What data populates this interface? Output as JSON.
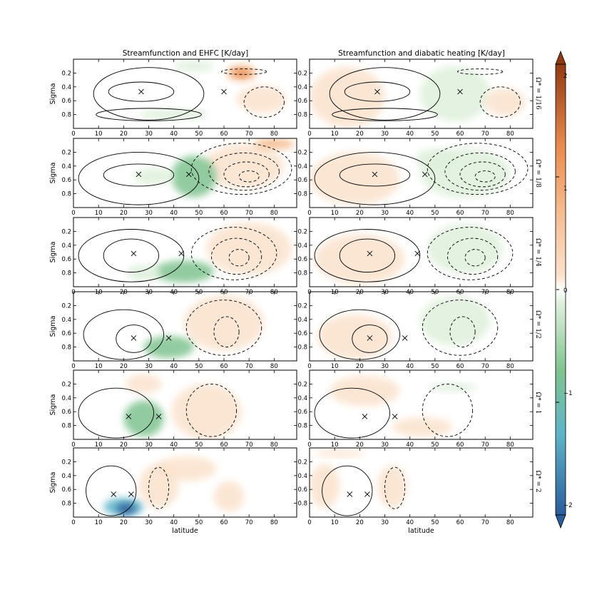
{
  "chart_data": {
    "type": "contour",
    "column_titles": [
      "Streamfunction and EHFC [K/day]",
      "Streamfunction and diabatic heating [K/day]"
    ],
    "xlabel": "latitude",
    "ylabel": "Sigma",
    "xlim": [
      0,
      89
    ],
    "ylim": [
      1.0,
      0.0
    ],
    "x_ticks": [
      0,
      10,
      20,
      30,
      40,
      50,
      60,
      70,
      80
    ],
    "y_ticks": [
      0.2,
      0.4,
      0.6,
      0.8
    ],
    "x_tick_labels": [
      "0",
      "10",
      "20",
      "30",
      "40",
      "50",
      "60",
      "70",
      "80"
    ],
    "y_tick_labels": [
      "0.2",
      "0.4",
      "0.6",
      "0.8"
    ],
    "row_labels": [
      "Ω* = 1/16",
      "Ω* = 1/8",
      "Ω* = 1/4",
      "Ω* = 1/2",
      "Ω* = 1",
      "Ω* = 2"
    ],
    "colorbar": {
      "range": [
        -2,
        2
      ],
      "ticks": [
        -2,
        -1,
        0,
        1,
        2
      ],
      "tick_labels": [
        "−2",
        "−1",
        "0",
        "1",
        "2"
      ],
      "extend": "both",
      "colors": {
        "neg_max": "#2b5c9b",
        "neg_mid": "#5fb4c8",
        "neg_low": "#7fc38f",
        "neg_min": "#dff0dc",
        "zero": "#ffffff",
        "pos_min": "#fbe2cc",
        "pos_low": "#f5ba8c",
        "pos_mid": "#e98a4e",
        "pos_max": "#8e3b14"
      }
    },
    "rows": [
      {
        "cells": [
          {
            "lat": 27,
            "sigma": 0.47
          },
          {
            "lat": 60,
            "sigma": 0.47
          }
        ],
        "cell_rings": [
          {
            "cx": 30,
            "cy": 0.5,
            "rx": 22,
            "ry": 0.38
          },
          {
            "cx": 27,
            "cy": 0.47,
            "rx": 13,
            "ry": 0.14
          }
        ],
        "cell_lower": {
          "cx": 30,
          "cy": 0.8,
          "rx": 21,
          "ry": 0.09
        },
        "dashed": [
          {
            "cx": 76,
            "cy": 0.62,
            "rx": 8,
            "ry": 0.22
          },
          {
            "cx": 68,
            "cy": 0.18,
            "rx": 9,
            "ry": 0.04
          }
        ],
        "ehfc": [
          {
            "cx": 67,
            "cy": 0.2,
            "rx": 6,
            "ry": 0.12,
            "v": 1.1
          },
          {
            "cx": 67,
            "cy": 0.2,
            "rx": 3,
            "ry": 0.06,
            "v": 1.6
          },
          {
            "cx": 48,
            "cy": 0.1,
            "rx": 8,
            "ry": 0.08,
            "v": -0.35
          },
          {
            "cx": 75,
            "cy": 0.58,
            "rx": 10,
            "ry": 0.2,
            "v": 0.3
          },
          {
            "cx": 40,
            "cy": 0.8,
            "rx": 14,
            "ry": 0.08,
            "v": -0.25
          }
        ],
        "diab": [
          {
            "cx": 15,
            "cy": 0.55,
            "rx": 15,
            "ry": 0.44,
            "v": 0.45
          },
          {
            "cx": 58,
            "cy": 0.5,
            "rx": 14,
            "ry": 0.4,
            "v": -0.2
          },
          {
            "cx": 78,
            "cy": 0.62,
            "rx": 8,
            "ry": 0.2,
            "v": 0.3
          }
        ]
      },
      {
        "cells": [
          {
            "lat": 26,
            "sigma": 0.52
          },
          {
            "lat": 46,
            "sigma": 0.52
          }
        ],
        "cell_rings": [
          {
            "cx": 26,
            "cy": 0.58,
            "rx": 24,
            "ry": 0.38
          },
          {
            "cx": 26,
            "cy": 0.53,
            "rx": 14,
            "ry": 0.16
          }
        ],
        "dashed": [
          {
            "cx": 67,
            "cy": 0.44,
            "rx": 20,
            "ry": 0.37
          },
          {
            "cx": 68,
            "cy": 0.48,
            "rx": 14,
            "ry": 0.27
          },
          {
            "cx": 69,
            "cy": 0.52,
            "rx": 9,
            "ry": 0.18
          },
          {
            "cx": 70,
            "cy": 0.55,
            "rx": 4,
            "ry": 0.08
          }
        ],
        "ehfc": [
          {
            "cx": 68,
            "cy": 0.4,
            "rx": 16,
            "ry": 0.32,
            "v": 0.45
          },
          {
            "cx": 80,
            "cy": 0.08,
            "rx": 8,
            "ry": 0.08,
            "v": 0.7
          },
          {
            "cx": 48,
            "cy": 0.55,
            "rx": 9,
            "ry": 0.3,
            "v": -0.45
          },
          {
            "cx": 32,
            "cy": 0.55,
            "rx": 8,
            "ry": 0.12,
            "v": -0.3
          }
        ],
        "diab": [
          {
            "cx": 18,
            "cy": 0.58,
            "rx": 18,
            "ry": 0.38,
            "v": 0.5
          },
          {
            "cx": 62,
            "cy": 0.5,
            "rx": 18,
            "ry": 0.36,
            "v": -0.3
          },
          {
            "cx": 50,
            "cy": 0.3,
            "rx": 8,
            "ry": 0.15,
            "v": -0.2
          }
        ]
      },
      {
        "cells": [
          {
            "lat": 24,
            "sigma": 0.52
          },
          {
            "lat": 43,
            "sigma": 0.52
          }
        ],
        "cell_rings": [
          {
            "cx": 23,
            "cy": 0.55,
            "rx": 21,
            "ry": 0.38
          },
          {
            "cx": 23,
            "cy": 0.55,
            "rx": 11,
            "ry": 0.24
          }
        ],
        "dashed": [
          {
            "cx": 64,
            "cy": 0.52,
            "rx": 17,
            "ry": 0.38
          },
          {
            "cx": 65,
            "cy": 0.56,
            "rx": 10,
            "ry": 0.26
          },
          {
            "cx": 66,
            "cy": 0.58,
            "rx": 4,
            "ry": 0.12
          }
        ],
        "ehfc": [
          {
            "cx": 70,
            "cy": 0.45,
            "rx": 17,
            "ry": 0.38,
            "v": 0.45
          },
          {
            "cx": 44,
            "cy": 0.78,
            "rx": 12,
            "ry": 0.16,
            "v": -0.55
          },
          {
            "cx": 28,
            "cy": 0.8,
            "rx": 7,
            "ry": 0.12,
            "v": -0.25
          }
        ],
        "diab": [
          {
            "cx": 20,
            "cy": 0.6,
            "rx": 18,
            "ry": 0.36,
            "v": 0.5
          },
          {
            "cx": 62,
            "cy": 0.45,
            "rx": 15,
            "ry": 0.36,
            "v": -0.3
          }
        ]
      },
      {
        "cells": [
          {
            "lat": 24,
            "sigma": 0.67
          },
          {
            "lat": 38,
            "sigma": 0.67
          }
        ],
        "cell_rings": [
          {
            "cx": 20,
            "cy": 0.62,
            "rx": 16,
            "ry": 0.36
          },
          {
            "cx": 24,
            "cy": 0.68,
            "rx": 7,
            "ry": 0.2
          }
        ],
        "dashed": [
          {
            "cx": 60,
            "cy": 0.52,
            "rx": 15,
            "ry": 0.4
          },
          {
            "cx": 61,
            "cy": 0.58,
            "rx": 5,
            "ry": 0.22
          }
        ],
        "ehfc": [
          {
            "cx": 60,
            "cy": 0.45,
            "rx": 16,
            "ry": 0.4,
            "v": 0.4
          },
          {
            "cx": 38,
            "cy": 0.8,
            "rx": 10,
            "ry": 0.16,
            "v": -0.5
          }
        ],
        "diab": [
          {
            "cx": 18,
            "cy": 0.65,
            "rx": 15,
            "ry": 0.32,
            "v": 0.45
          },
          {
            "cx": 58,
            "cy": 0.42,
            "rx": 14,
            "ry": 0.36,
            "v": -0.25
          }
        ]
      },
      {
        "cells": [
          {
            "lat": 22,
            "sigma": 0.67
          },
          {
            "lat": 34,
            "sigma": 0.67
          }
        ],
        "cell_rings": [
          {
            "cx": 17,
            "cy": 0.62,
            "rx": 15,
            "ry": 0.36
          }
        ],
        "dashed": [
          {
            "cx": 55,
            "cy": 0.58,
            "rx": 10,
            "ry": 0.38
          }
        ],
        "ehfc": [
          {
            "cx": 53,
            "cy": 0.6,
            "rx": 14,
            "ry": 0.4,
            "v": 0.35
          },
          {
            "cx": 28,
            "cy": 0.7,
            "rx": 8,
            "ry": 0.26,
            "v": -0.55
          },
          {
            "cx": 28,
            "cy": 0.2,
            "rx": 7,
            "ry": 0.14,
            "v": 0.3
          }
        ],
        "diab": [
          {
            "cx": 22,
            "cy": 0.3,
            "rx": 14,
            "ry": 0.22,
            "v": 0.35
          },
          {
            "cx": 45,
            "cy": 0.82,
            "rx": 12,
            "ry": 0.14,
            "v": 0.3
          },
          {
            "cx": 57,
            "cy": 0.25,
            "rx": 10,
            "ry": 0.06,
            "v": -0.2
          }
        ]
      },
      {
        "cells": [
          {
            "lat": 16,
            "sigma": 0.67
          },
          {
            "lat": 23,
            "sigma": 0.67
          }
        ],
        "cell_rings": [
          {
            "cx": 15,
            "cy": 0.62,
            "rx": 10,
            "ry": 0.36
          }
        ],
        "dashed": [
          {
            "cx": 34,
            "cy": 0.58,
            "rx": 4,
            "ry": 0.3
          }
        ],
        "ehfc": [
          {
            "cx": 20,
            "cy": 0.85,
            "rx": 8,
            "ry": 0.13,
            "v": -0.9
          },
          {
            "cx": 21,
            "cy": 0.88,
            "rx": 4,
            "ry": 0.08,
            "v": -1.6
          },
          {
            "cx": 34,
            "cy": 0.55,
            "rx": 8,
            "ry": 0.32,
            "v": 0.35
          },
          {
            "cx": 62,
            "cy": 0.7,
            "rx": 6,
            "ry": 0.22,
            "v": 0.25
          },
          {
            "cx": 45,
            "cy": 0.3,
            "rx": 12,
            "ry": 0.18,
            "v": 0.2
          }
        ],
        "diab": [
          {
            "cx": 6,
            "cy": 0.55,
            "rx": 6,
            "ry": 0.32,
            "v": 0.3
          },
          {
            "cx": 33,
            "cy": 0.56,
            "rx": 6,
            "ry": 0.3,
            "v": 0.3
          },
          {
            "cx": 12,
            "cy": 0.08,
            "rx": 10,
            "ry": 0.05,
            "v": 0.25
          }
        ]
      }
    ]
  }
}
